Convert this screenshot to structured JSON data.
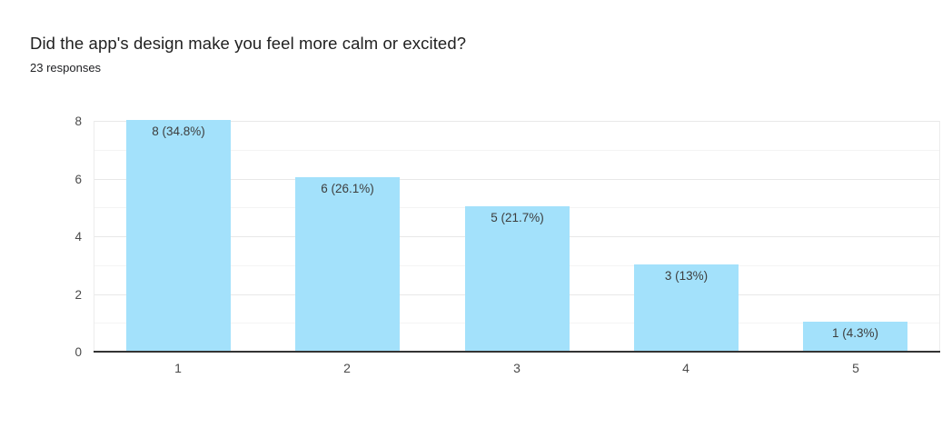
{
  "header": {
    "title": "Did the app's design make you feel more calm or excited?",
    "responses_label": "23 responses"
  },
  "chart_data": {
    "type": "bar",
    "title": "Did the app's design make you feel more calm or excited?",
    "subtitle": "23 responses",
    "categories": [
      "1",
      "2",
      "3",
      "4",
      "5"
    ],
    "values": [
      8,
      6,
      5,
      3,
      1
    ],
    "bar_labels": [
      "8 (34.8%)",
      "6 (26.1%)",
      "5 (21.7%)",
      "3 (13%)",
      "1 (4.3%)"
    ],
    "total_responses": 23,
    "xlabel": "",
    "ylabel": "",
    "ylim": [
      0,
      8
    ],
    "y_ticks": [
      0,
      2,
      4,
      6,
      8
    ],
    "gridlines_every": 1,
    "grid": true,
    "legend_position": "none",
    "bar_color": "#a3e1fb",
    "axis_line_color": "#333333",
    "label_color": "#3d3d3d"
  }
}
